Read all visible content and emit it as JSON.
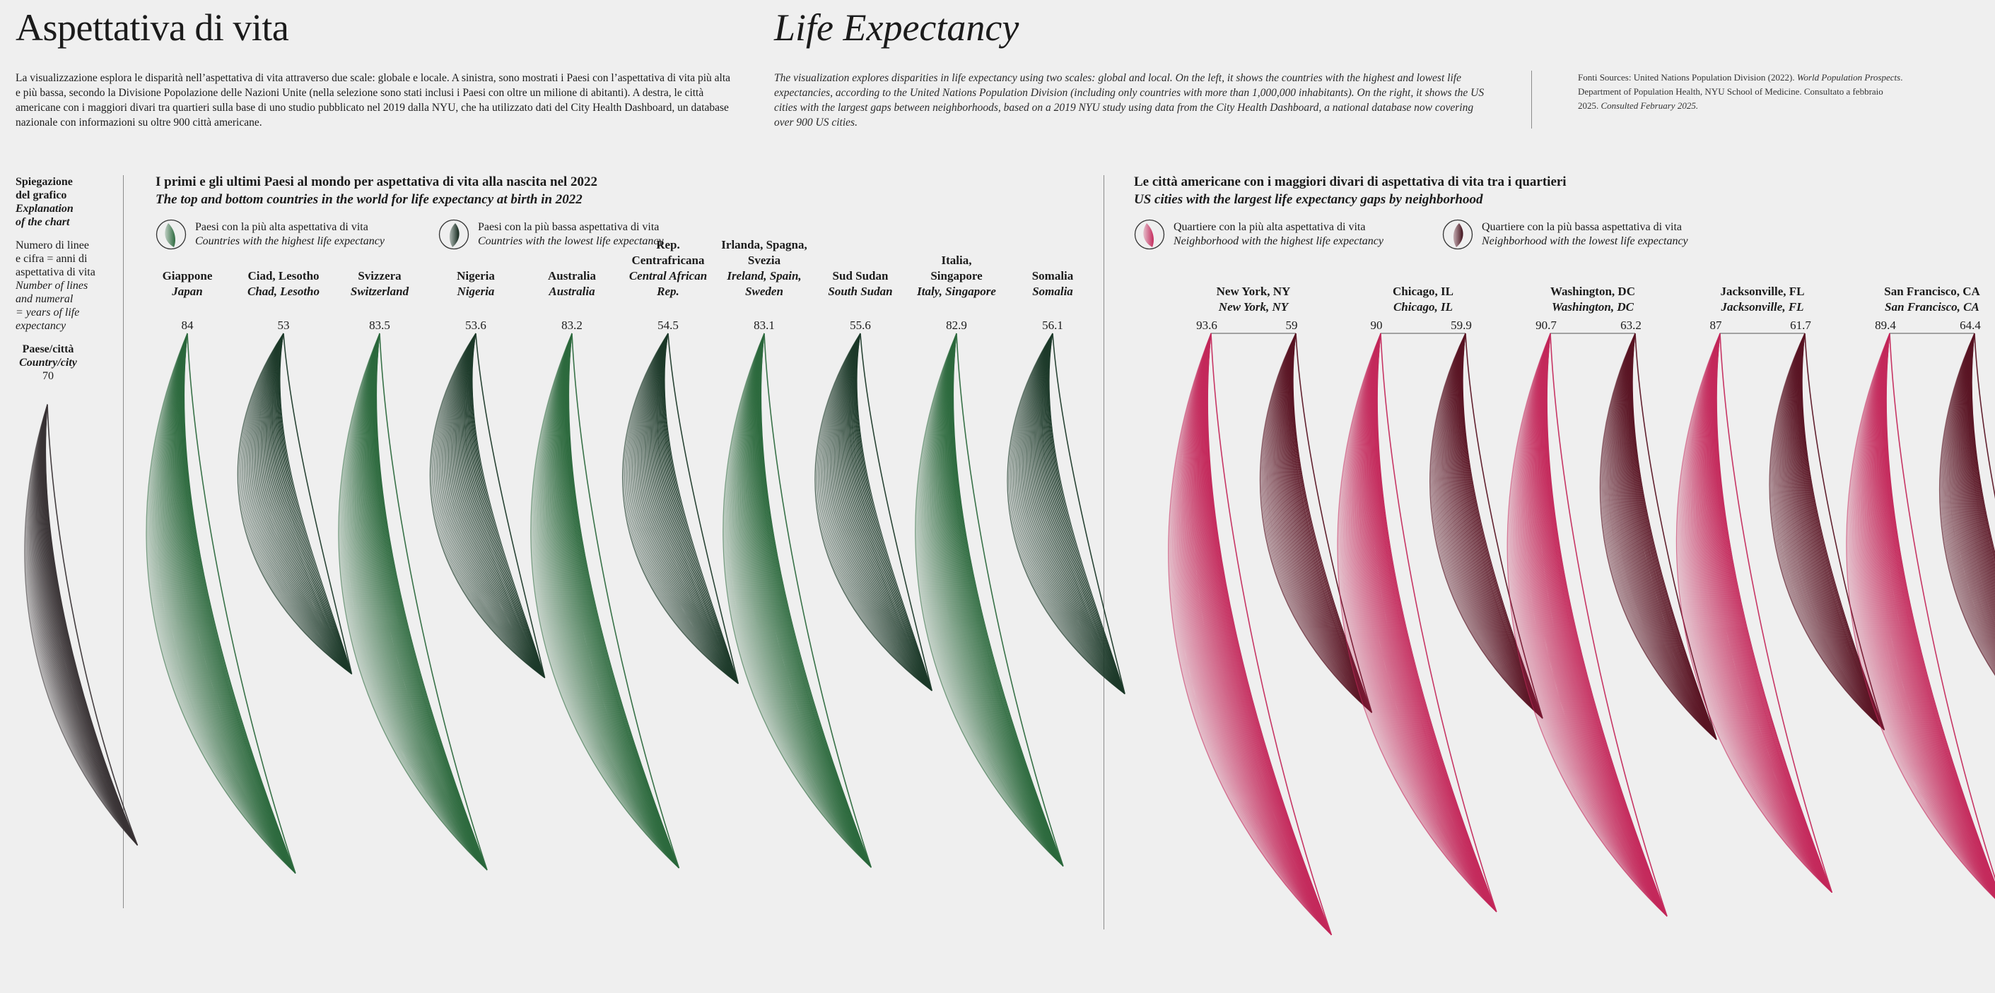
{
  "header": {
    "title_it": "Aspettativa di vita",
    "title_en": "Life Expectancy",
    "intro_it": "La visualizzazione esplora le disparità nell’aspettativa di vita attraverso due scale: globale e locale. A sinistra, sono mostrati i Paesi con l’aspettativa di vita più alta e più bassa, secondo la Divisione Popolazione delle Nazioni Unite (nella selezione sono stati inclusi i Paesi con oltre un milione di abitanti). A destra, le città americane con i maggiori divari tra quartieri sulla base di uno studio pubblicato nel 2019 dalla NYU, che ha utilizzato dati del City Health Dashboard, un database nazionale con informazioni su oltre 900 città americane.",
    "intro_en": "The visualization explores disparities in life expectancy using two scales: global and local. On the left, it shows the countries with the highest and lowest life expectancies, according to the United Nations Population Division (including only countries with more than 1,000,000 inhabitants). On the right, it shows the US cities with the largest gaps between neighborhoods, based on a 2019 NYU study using data from the City Health Dashboard, a national database now covering over 900 US cities.",
    "sources_prefix": "Fonti Sources: United Nations Population Division (2022).",
    "sources_title": "World Population Prospects",
    "sources_suffix": ". Department of Population Health, NYU School of Medicine. Consultato a febbraio 2025.",
    "sources_consulted_en": "Consulted February 2025."
  },
  "explanation": {
    "title_it_1": "Spiegazione",
    "title_it_2": "del grafico",
    "title_en_1": "Explanation",
    "title_en_2": "of the chart",
    "desc_it_1": "Numero di linee",
    "desc_it_2": "e cifra = anni di",
    "desc_it_3": "aspettativa di vita",
    "desc_en_1": "Number of lines",
    "desc_en_2": "and numeral",
    "desc_en_3": "= years of life",
    "desc_en_4": "expectancy",
    "country_it": "Paese/città",
    "country_en": "Country/city",
    "example_value": "70",
    "example_color": "#3a3436"
  },
  "countries_section": {
    "title_it": "I primi e gli ultimi Paesi al mondo per aspettativa di vita alla nascita nel 2022",
    "title_en": "The top and bottom countries in the world for life expectancy at birth in 2022",
    "legend_high_it": "Paesi con la più alta aspettativa di vita",
    "legend_high_en": "Countries with the highest life expectancy",
    "legend_low_it": "Paesi con la più bassa aspettativa di vita",
    "legend_low_en": "Countries with the lowest life expectancy",
    "high_color": "#2d6a3e",
    "low_color": "#1d3a2a"
  },
  "cities_section": {
    "title_it": "Le città americane con i maggiori divari di aspettativa di vita tra i quartieri",
    "title_en": "US cities with the largest life expectancy gaps by neighborhood",
    "legend_high_it": "Quartiere con la più alta aspettativa di vita",
    "legend_high_en": "Neighborhood with the highest life expectancy",
    "legend_low_it": "Quartiere con la più bassa aspettativa di vita",
    "legend_low_en": "Neighborhood with the lowest life expectancy",
    "high_color": "#c42a5c",
    "low_color": "#5a1524"
  },
  "chart_data": [
    {
      "type": "bar",
      "title": "The top and bottom countries in the world for life expectancy at birth in 2022",
      "series": [
        {
          "name_it": "Giappone",
          "name_en": "Japan",
          "group": "high",
          "value": 84
        },
        {
          "name_it": "Ciad, Lesotho",
          "name_en": "Chad, Lesotho",
          "group": "low",
          "value": 53
        },
        {
          "name_it": "Svizzera",
          "name_en": "Switzerland",
          "group": "high",
          "value": 83.5
        },
        {
          "name_it": "Nigeria",
          "name_en": "Nigeria",
          "group": "low",
          "value": 53.6
        },
        {
          "name_it": "Australia",
          "name_en": "Australia",
          "group": "high",
          "value": 83.2
        },
        {
          "name_it": "Rep. Centrafricana",
          "name_en": "Central African Rep.",
          "group": "low",
          "value": 54.5
        },
        {
          "name_it": "Irlanda, Spagna, Svezia",
          "name_en": "Ireland, Spain, Sweden",
          "group": "high",
          "value": 83.1
        },
        {
          "name_it": "Sud Sudan",
          "name_en": "South Sudan",
          "group": "low",
          "value": 55.6
        },
        {
          "name_it": "Italia, Singapore",
          "name_en": "Italy, Singapore",
          "group": "high",
          "value": 82.9
        },
        {
          "name_it": "Somalia",
          "name_en": "Somalia",
          "group": "low",
          "value": 56.1
        }
      ]
    },
    {
      "type": "bar",
      "title": "US cities with the largest life expectancy gaps by neighborhood",
      "series": [
        {
          "name_it": "New York, NY",
          "name_en": "New York, NY",
          "high": 93.6,
          "low": 59
        },
        {
          "name_it": "Chicago, IL",
          "name_en": "Chicago, IL",
          "high": 90,
          "low": 59.9
        },
        {
          "name_it": "Washington, DC",
          "name_en": "Washington, DC",
          "high": 90.7,
          "low": 63.2
        },
        {
          "name_it": "Jacksonville, FL",
          "name_en": "Jacksonville, FL",
          "high": 87,
          "low": 61.7
        },
        {
          "name_it": "San Francisco, CA",
          "name_en": "San Francisco, CA",
          "high": 89.4,
          "low": 64.4
        }
      ]
    }
  ]
}
